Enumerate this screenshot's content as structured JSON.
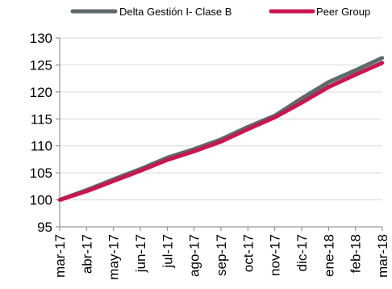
{
  "chart_data": {
    "type": "line",
    "categories": [
      "mar-17",
      "abr-17",
      "may-17",
      "jun-17",
      "jul-17",
      "ago-17",
      "sep-17",
      "oct-17",
      "nov-17",
      "dic-17",
      "ene-18",
      "feb-18",
      "mar-18"
    ],
    "series": [
      {
        "name": "Delta Gestión I- Clase B",
        "color": "#5f6a6d",
        "values": [
          100.0,
          101.8,
          103.8,
          105.7,
          107.8,
          109.4,
          111.2,
          113.5,
          115.6,
          118.8,
          121.8,
          124.0,
          126.3
        ]
      },
      {
        "name": "Peer Group",
        "color": "#c8174f",
        "values": [
          100.0,
          101.6,
          103.5,
          105.4,
          107.4,
          109.0,
          110.8,
          113.1,
          115.3,
          118.0,
          120.9,
          123.2,
          125.4
        ]
      }
    ],
    "title": "",
    "xlabel": "",
    "ylabel": "",
    "ylim": [
      95,
      130
    ],
    "yticks": [
      "95",
      "100",
      "105",
      "110",
      "115",
      "120",
      "125",
      "130"
    ],
    "grid": "horizontal",
    "legend_position": "top"
  }
}
